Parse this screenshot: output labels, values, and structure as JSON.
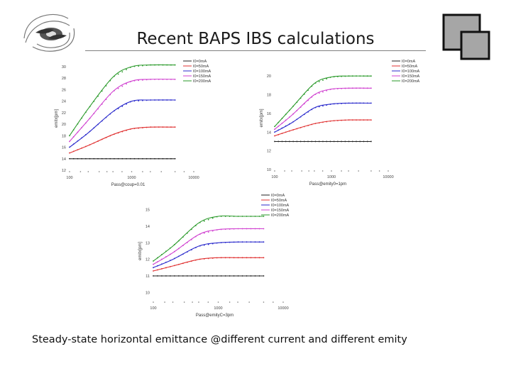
{
  "slide": {
    "title": "Recent BAPS IBS calculations",
    "caption": "Steady-state horizontal emittance @different current and different emity"
  },
  "legend_colors": {
    "I0=0mA": "#222222",
    "I0=50mA": "#e03030",
    "I0=100mA": "#2a2acc",
    "I0=150mA": "#d040d0",
    "I0=200mA": "#2a9a2a"
  },
  "chart_data": [
    {
      "type": "line",
      "x_scale": "log",
      "xlim": [
        100,
        10000
      ],
      "ylim": [
        12,
        30
      ],
      "yticks": [
        "30",
        "28",
        "26",
        "24",
        "22",
        "20",
        "18",
        "16",
        "14",
        "12"
      ],
      "xticks": [
        "100",
        "1000",
        "10000"
      ],
      "xlabel": "Pass@coup=0.01",
      "ylabel": "emitx[pm]",
      "legend_position": "top-right",
      "series": [
        {
          "name": "I0=0mA",
          "x": [
            100,
            200,
            500,
            1000,
            2000,
            5000
          ],
          "values": [
            14.0,
            14.0,
            14.0,
            14.0,
            14.0,
            14.0
          ]
        },
        {
          "name": "I0=50mA",
          "x": [
            100,
            200,
            500,
            1000,
            2000,
            5000
          ],
          "values": [
            15.0,
            16.3,
            18.2,
            19.2,
            19.5,
            19.5
          ]
        },
        {
          "name": "I0=100mA",
          "x": [
            100,
            200,
            500,
            1000,
            2000,
            5000
          ],
          "values": [
            16.0,
            18.5,
            22.2,
            24.0,
            24.2,
            24.2
          ]
        },
        {
          "name": "I0=150mA",
          "x": [
            100,
            200,
            500,
            1000,
            2000,
            5000
          ],
          "values": [
            17.0,
            20.7,
            25.7,
            27.5,
            27.8,
            27.8
          ]
        },
        {
          "name": "I0=200mA",
          "x": [
            100,
            200,
            500,
            1000,
            2000,
            5000
          ],
          "values": [
            18.0,
            22.7,
            28.2,
            30.0,
            30.3,
            30.3
          ]
        }
      ]
    },
    {
      "type": "line",
      "x_scale": "log",
      "xlim": [
        100,
        10000
      ],
      "ylim": [
        10,
        21
      ],
      "yticks": [
        "20",
        "18",
        "16",
        "14",
        "12",
        "10"
      ],
      "xticks": [
        "100",
        "1000",
        "10000"
      ],
      "xlabel": "Pass@emity0=1pm",
      "ylabel": "emitx[pm]",
      "legend_position": "top-right",
      "series": [
        {
          "name": "I0=0mA",
          "x": [
            100,
            200,
            500,
            1000,
            2000,
            5000
          ],
          "values": [
            13.0,
            13.0,
            13.0,
            13.0,
            13.0,
            13.0
          ]
        },
        {
          "name": "I0=50mA",
          "x": [
            100,
            200,
            500,
            1000,
            2000,
            5000
          ],
          "values": [
            13.6,
            14.2,
            14.9,
            15.2,
            15.3,
            15.3
          ]
        },
        {
          "name": "I0=100mA",
          "x": [
            100,
            200,
            500,
            1000,
            2000,
            5000
          ],
          "values": [
            14.0,
            15.0,
            16.6,
            17.0,
            17.1,
            17.1
          ]
        },
        {
          "name": "I0=150mA",
          "x": [
            100,
            200,
            500,
            1000,
            2000,
            5000
          ],
          "values": [
            14.3,
            15.8,
            18.0,
            18.6,
            18.7,
            18.7
          ]
        },
        {
          "name": "I0=200mA",
          "x": [
            100,
            200,
            500,
            1000,
            2000,
            5000
          ],
          "values": [
            14.6,
            16.6,
            19.2,
            19.9,
            20.0,
            20.0
          ]
        }
      ]
    },
    {
      "type": "line",
      "x_scale": "log",
      "xlim": [
        100,
        10000
      ],
      "ylim": [
        9.5,
        15.5
      ],
      "yticks": [
        "15",
        "14",
        "13",
        "12",
        "11",
        "10"
      ],
      "xticks": [
        "100",
        "1000",
        "10000"
      ],
      "xlabel": "Pass@emityC=3pm",
      "ylabel": "emitx[pm]",
      "legend_position": "top-right",
      "series": [
        {
          "name": "I0=0mA",
          "x": [
            100,
            200,
            500,
            1000,
            2000,
            5000
          ],
          "values": [
            11.0,
            11.0,
            11.0,
            11.0,
            11.0,
            11.0
          ]
        },
        {
          "name": "I0=50mA",
          "x": [
            100,
            200,
            500,
            1000,
            2000,
            5000
          ],
          "values": [
            11.3,
            11.6,
            12.0,
            12.1,
            12.1,
            12.1
          ]
        },
        {
          "name": "I0=100mA",
          "x": [
            100,
            200,
            500,
            1000,
            2000,
            5000
          ],
          "values": [
            11.5,
            12.0,
            12.8,
            13.0,
            13.05,
            13.05
          ]
        },
        {
          "name": "I0=150mA",
          "x": [
            100,
            200,
            500,
            1000,
            2000,
            5000
          ],
          "values": [
            11.7,
            12.4,
            13.5,
            13.8,
            13.85,
            13.85
          ]
        },
        {
          "name": "I0=200mA",
          "x": [
            100,
            200,
            500,
            1000,
            2000,
            5000
          ],
          "values": [
            11.9,
            12.8,
            14.2,
            14.6,
            14.6,
            14.6
          ]
        }
      ]
    }
  ]
}
